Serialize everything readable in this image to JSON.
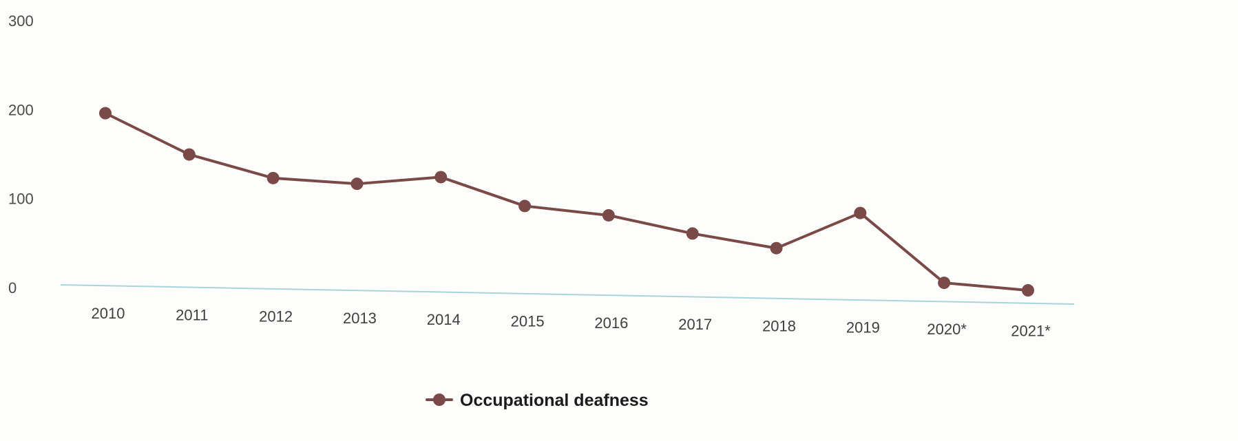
{
  "chart_data": {
    "type": "line",
    "title": "",
    "xlabel": "",
    "ylabel": "",
    "categories": [
      "2010",
      "2011",
      "2012",
      "2013",
      "2014",
      "2015",
      "2016",
      "2017",
      "2018",
      "2019",
      "2020*",
      "2021*"
    ],
    "yticks": [
      "0",
      "100",
      "200",
      "300"
    ],
    "ylim": [
      0,
      300
    ],
    "grid": false,
    "legend_position": "bottom-center",
    "series": [
      {
        "name": "Occupational deafness",
        "values": [
          196,
          150,
          124,
          118,
          126,
          94,
          84,
          64,
          48,
          88,
          10,
          2
        ],
        "color": "#7a4a48"
      }
    ],
    "axis_color": "#a9d4d8"
  }
}
